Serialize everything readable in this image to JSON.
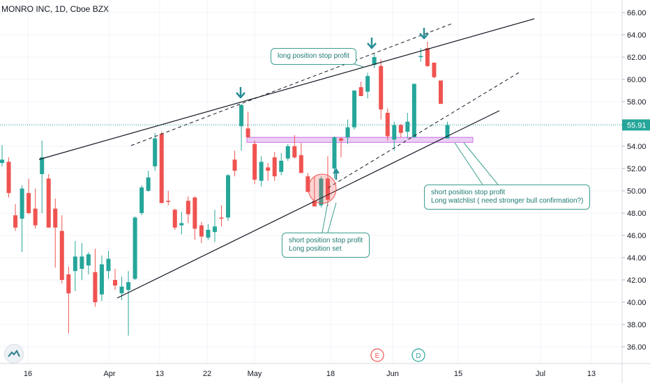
{
  "title": "MONRO INC, 1D, Cboe BZX",
  "chart_data": {
    "type": "candlestick",
    "ylim": [
      35,
      67
    ],
    "y_ticks": [
      "66.00",
      "64.00",
      "62.00",
      "60.00",
      "58.00",
      "56.00",
      "54.00",
      "52.00",
      "50.00",
      "48.00",
      "46.00",
      "44.00",
      "42.00",
      "40.00",
      "38.00",
      "36.00"
    ],
    "x_ticks": [
      "16",
      "Apr",
      "13",
      "22",
      "May",
      "18",
      "Jun",
      "15",
      "Jul",
      "13"
    ],
    "last_price": "55.91",
    "candles": [
      {
        "o": 52.5,
        "h": 54.1,
        "l": 52.2,
        "c": 52.8
      },
      {
        "o": 52.6,
        "h": 53.0,
        "l": 49.4,
        "c": 49.8
      },
      {
        "o": 47.8,
        "h": 48.8,
        "l": 46.4,
        "c": 46.7
      },
      {
        "o": 47.5,
        "h": 50.5,
        "l": 44.5,
        "c": 50.2
      },
      {
        "o": 49.8,
        "h": 51.1,
        "l": 47.9,
        "c": 48.0
      },
      {
        "o": 48.4,
        "h": 50.2,
        "l": 46.6,
        "c": 46.9
      },
      {
        "o": 51.5,
        "h": 54.5,
        "l": 48.0,
        "c": 53.0
      },
      {
        "o": 51.1,
        "h": 51.5,
        "l": 46.7,
        "c": 46.7
      },
      {
        "o": 48.4,
        "h": 49.3,
        "l": 43.1,
        "c": 46.7
      },
      {
        "o": 46.4,
        "h": 47.8,
        "l": 41.7,
        "c": 42.0
      },
      {
        "o": 42.5,
        "h": 43.2,
        "l": 37.2,
        "c": 40.8
      },
      {
        "o": 42.8,
        "h": 45.5,
        "l": 41.0,
        "c": 44.1
      },
      {
        "o": 43.0,
        "h": 45.3,
        "l": 42.0,
        "c": 44.1
      },
      {
        "o": 43.3,
        "h": 44.5,
        "l": 42.5,
        "c": 44.3
      },
      {
        "o": 42.7,
        "h": 44.8,
        "l": 39.6,
        "c": 40.0
      },
      {
        "o": 40.7,
        "h": 44.2,
        "l": 40.1,
        "c": 43.4
      },
      {
        "o": 42.8,
        "h": 44.6,
        "l": 42.1,
        "c": 43.9
      },
      {
        "o": 42.0,
        "h": 43.0,
        "l": 41.1,
        "c": 41.5
      },
      {
        "o": 40.8,
        "h": 42.3,
        "l": 40.2,
        "c": 41.4
      },
      {
        "o": 41.1,
        "h": 42.8,
        "l": 37.0,
        "c": 41.8
      },
      {
        "o": 42.1,
        "h": 47.7,
        "l": 42.0,
        "c": 47.6
      },
      {
        "o": 48.0,
        "h": 50.5,
        "l": 47.8,
        "c": 50.3
      },
      {
        "o": 50.0,
        "h": 51.8,
        "l": 49.9,
        "c": 51.2
      },
      {
        "o": 52.2,
        "h": 55.2,
        "l": 51.8,
        "c": 54.7
      },
      {
        "o": 55.1,
        "h": 55.3,
        "l": 48.9,
        "c": 48.9
      },
      {
        "o": 49.1,
        "h": 50.0,
        "l": 48.7,
        "c": 49.0
      },
      {
        "o": 48.3,
        "h": 48.4,
        "l": 46.5,
        "c": 46.7
      },
      {
        "o": 46.9,
        "h": 48.1,
        "l": 46.1,
        "c": 47.1
      },
      {
        "o": 49.1,
        "h": 49.5,
        "l": 47.1,
        "c": 47.9
      },
      {
        "o": 49.4,
        "h": 49.5,
        "l": 45.6,
        "c": 46.6
      },
      {
        "o": 46.9,
        "h": 47.2,
        "l": 45.3,
        "c": 45.9
      },
      {
        "o": 45.8,
        "h": 47.0,
        "l": 45.6,
        "c": 46.5
      },
      {
        "o": 46.3,
        "h": 48.3,
        "l": 45.4,
        "c": 46.8
      },
      {
        "o": 47.6,
        "h": 48.7,
        "l": 46.8,
        "c": 47.5
      },
      {
        "o": 47.6,
        "h": 51.5,
        "l": 47.3,
        "c": 51.4
      },
      {
        "o": 52.8,
        "h": 53.6,
        "l": 51.3,
        "c": 51.8
      },
      {
        "o": 55.8,
        "h": 57.8,
        "l": 53.6,
        "c": 57.7
      },
      {
        "o": 55.6,
        "h": 57.1,
        "l": 55.1,
        "c": 54.8
      },
      {
        "o": 54.2,
        "h": 54.5,
        "l": 50.6,
        "c": 51.0
      },
      {
        "o": 50.9,
        "h": 53.1,
        "l": 50.4,
        "c": 52.6
      },
      {
        "o": 52.1,
        "h": 52.5,
        "l": 50.9,
        "c": 51.8
      },
      {
        "o": 53.0,
        "h": 53.5,
        "l": 50.9,
        "c": 51.3
      },
      {
        "o": 51.7,
        "h": 53.4,
        "l": 51.4,
        "c": 52.7
      },
      {
        "o": 52.9,
        "h": 54.2,
        "l": 52.7,
        "c": 54.0
      },
      {
        "o": 54.0,
        "h": 55.0,
        "l": 52.9,
        "c": 53.0
      },
      {
        "o": 53.2,
        "h": 54.3,
        "l": 51.8,
        "c": 51.6
      },
      {
        "o": 51.3,
        "h": 51.6,
        "l": 49.9,
        "c": 49.9
      },
      {
        "o": 49.1,
        "h": 51.3,
        "l": 48.6,
        "c": 48.6
      },
      {
        "o": 48.7,
        "h": 51.3,
        "l": 48.5,
        "c": 51.1
      },
      {
        "o": 51.1,
        "h": 53.1,
        "l": 48.6,
        "c": 49.2
      },
      {
        "o": 52.0,
        "h": 54.9,
        "l": 51.1,
        "c": 54.8
      },
      {
        "o": 54.7,
        "h": 54.8,
        "l": 53.0,
        "c": 54.5
      },
      {
        "o": 54.8,
        "h": 56.4,
        "l": 54.2,
        "c": 55.7
      },
      {
        "o": 55.7,
        "h": 59.0,
        "l": 55.5,
        "c": 59.0
      },
      {
        "o": 59.3,
        "h": 59.8,
        "l": 58.5,
        "c": 58.5
      },
      {
        "o": 58.9,
        "h": 60.6,
        "l": 58.3,
        "c": 60.3
      },
      {
        "o": 61.3,
        "h": 62.3,
        "l": 61.0,
        "c": 62.0
      },
      {
        "o": 61.2,
        "h": 61.8,
        "l": 56.4,
        "c": 57.3
      },
      {
        "o": 57.0,
        "h": 57.4,
        "l": 54.5,
        "c": 54.9
      },
      {
        "o": 54.6,
        "h": 56.2,
        "l": 53.6,
        "c": 55.9
      },
      {
        "o": 55.9,
        "h": 56.0,
        "l": 54.8,
        "c": 55.2
      },
      {
        "o": 55.3,
        "h": 57.0,
        "l": 54.7,
        "c": 56.2
      },
      {
        "o": 54.8,
        "h": 59.6,
        "l": 54.8,
        "c": 59.6
      },
      {
        "o": 62.0,
        "h": 62.8,
        "l": 61.6,
        "c": 62.1
      },
      {
        "o": 62.8,
        "h": 63.4,
        "l": 61.1,
        "c": 61.2
      },
      {
        "o": 61.5,
        "h": 61.5,
        "l": 60.1,
        "c": 60.2
      },
      {
        "o": 59.9,
        "h": 59.9,
        "l": 58.0,
        "c": 57.8
      },
      {
        "o": 54.7,
        "h": 56.2,
        "l": 54.7,
        "c": 55.9
      }
    ]
  },
  "notes": {
    "long_stop": "long position stop profit",
    "short_stop_line1": "short position stop profit",
    "short_stop_line2": "Long position set",
    "watch_line1": "short position stop profit",
    "watch_line2": "Long watchlist ( need stronger bull confirmation?)"
  },
  "events": {
    "earnings": "E",
    "dividend": "D"
  },
  "colors": {
    "up": "#26a69a",
    "down": "#ef5350",
    "trend": "#131722",
    "note": "#3a9e8f",
    "zone": "#c875e0"
  }
}
